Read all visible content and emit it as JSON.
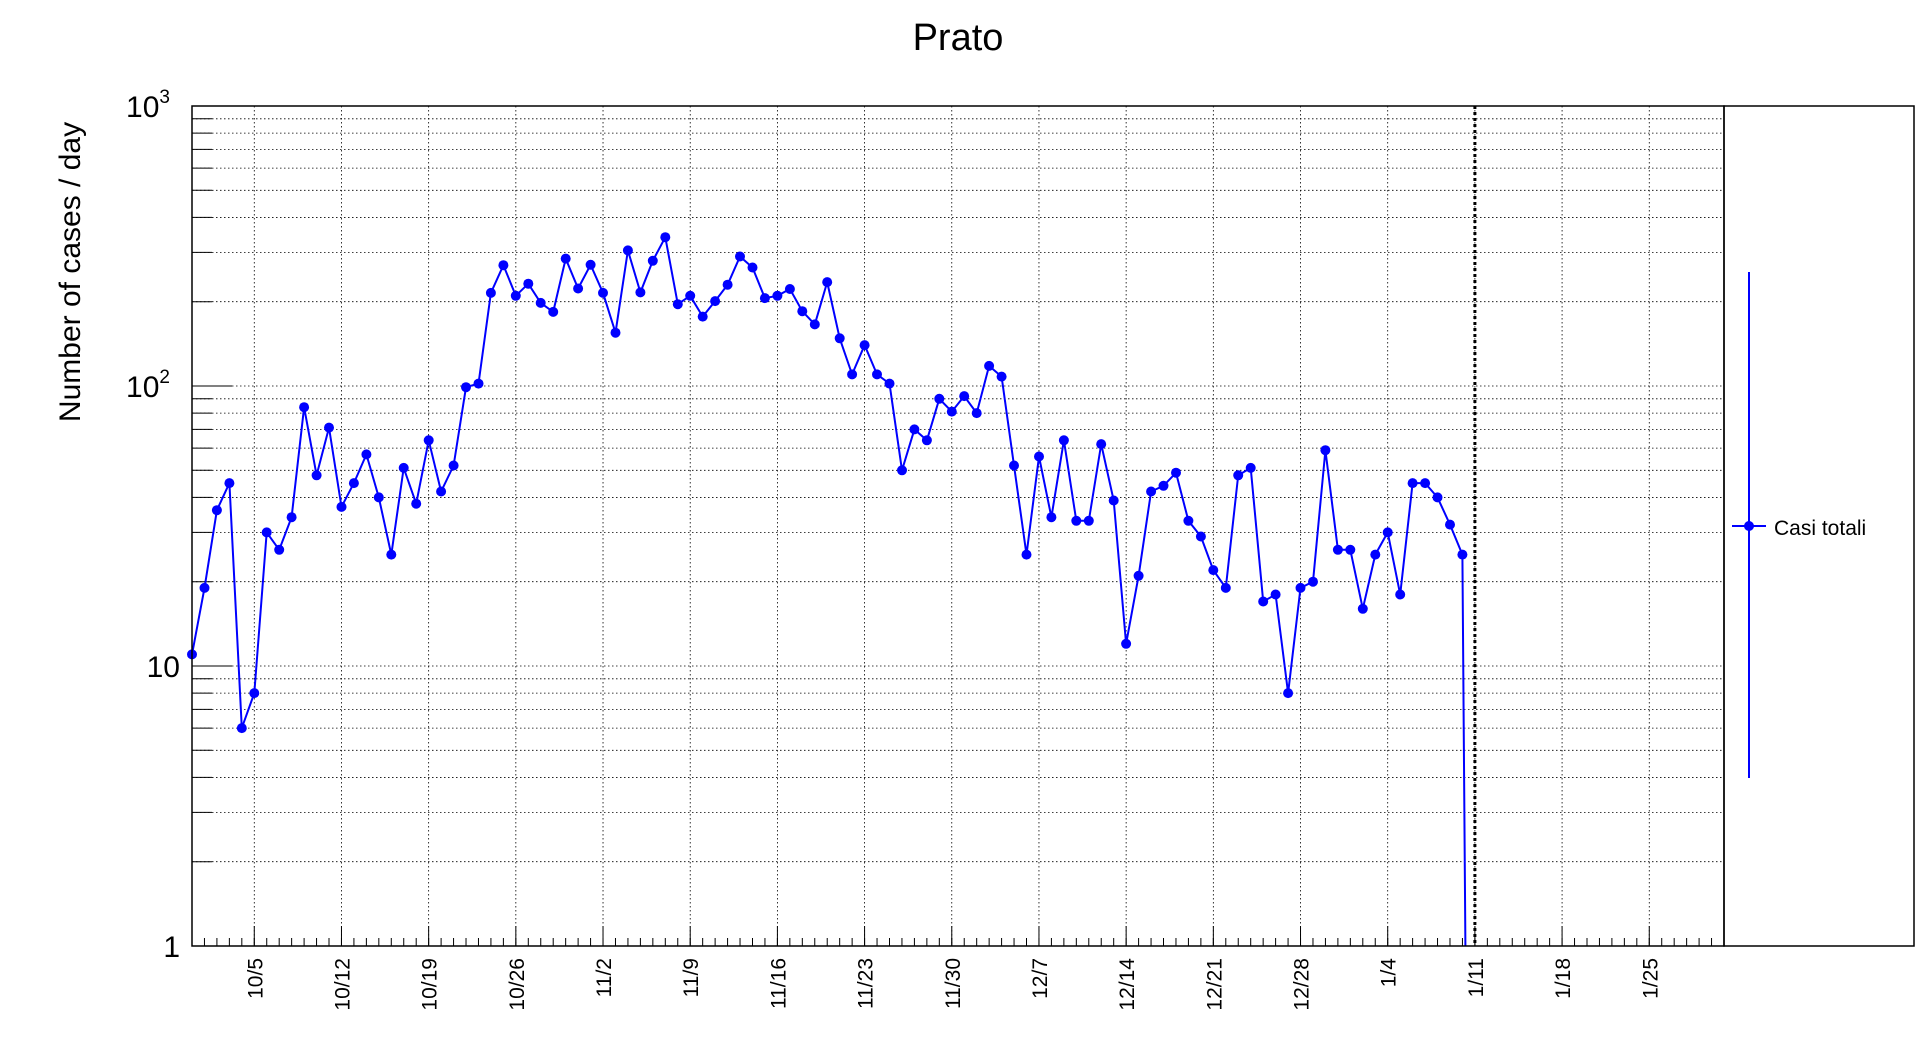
{
  "chart_data": {
    "type": "line",
    "title": "Prato",
    "xlabel": "",
    "ylabel": "Number of cases / day",
    "yscale": "log",
    "ylim": [
      1,
      1000
    ],
    "y_ticks": [
      {
        "value": 1,
        "base": "1",
        "exp": ""
      },
      {
        "value": 10,
        "base": "10",
        "exp": ""
      },
      {
        "value": 100,
        "base": "10",
        "exp": "2"
      },
      {
        "value": 1000,
        "base": "10",
        "exp": "3"
      }
    ],
    "x_range": [
      "2020-09-30",
      "2021-01-31"
    ],
    "x_ticks": [
      {
        "date": "2020-10-05",
        "label": "10/5"
      },
      {
        "date": "2020-10-12",
        "label": "10/12"
      },
      {
        "date": "2020-10-19",
        "label": "10/19"
      },
      {
        "date": "2020-10-26",
        "label": "10/26"
      },
      {
        "date": "2020-11-02",
        "label": "11/2"
      },
      {
        "date": "2020-11-09",
        "label": "11/9"
      },
      {
        "date": "2020-11-16",
        "label": "11/16"
      },
      {
        "date": "2020-11-23",
        "label": "11/23"
      },
      {
        "date": "2020-11-30",
        "label": "11/30"
      },
      {
        "date": "2020-12-07",
        "label": "12/7"
      },
      {
        "date": "2020-12-14",
        "label": "12/14"
      },
      {
        "date": "2020-12-21",
        "label": "12/21"
      },
      {
        "date": "2020-12-28",
        "label": "12/28"
      },
      {
        "date": "2021-01-04",
        "label": "1/4"
      },
      {
        "date": "2021-01-11",
        "label": "1/11"
      },
      {
        "date": "2021-01-18",
        "label": "1/18"
      },
      {
        "date": "2021-01-25",
        "label": "1/25"
      }
    ],
    "grid": true,
    "vline_date": "2021-01-11",
    "legend_position": "right",
    "series": [
      {
        "name": "Casi totali",
        "color": "#0000ff",
        "start_date": "2020-09-30",
        "values": [
          11,
          19,
          36,
          45,
          6,
          8,
          30,
          26,
          34,
          84,
          48,
          71,
          37,
          45,
          57,
          40,
          25,
          51,
          38,
          64,
          42,
          52,
          99,
          102,
          215,
          270,
          210,
          232,
          198,
          184,
          285,
          223,
          271,
          215,
          155,
          305,
          216,
          280,
          340,
          196,
          210,
          177,
          201,
          230,
          290,
          265,
          206,
          210,
          222,
          185,
          166,
          235,
          148,
          110,
          140,
          110,
          102,
          50,
          70,
          64,
          90,
          81,
          92,
          80,
          118,
          108,
          52,
          25,
          56,
          34,
          64,
          33,
          33,
          62,
          39,
          12,
          21,
          42,
          44,
          49,
          33,
          29,
          22,
          19,
          48,
          51,
          17,
          18,
          8,
          19,
          20,
          59,
          26,
          26,
          16,
          25,
          30,
          18,
          45,
          45,
          40,
          32,
          25
        ]
      }
    ]
  }
}
